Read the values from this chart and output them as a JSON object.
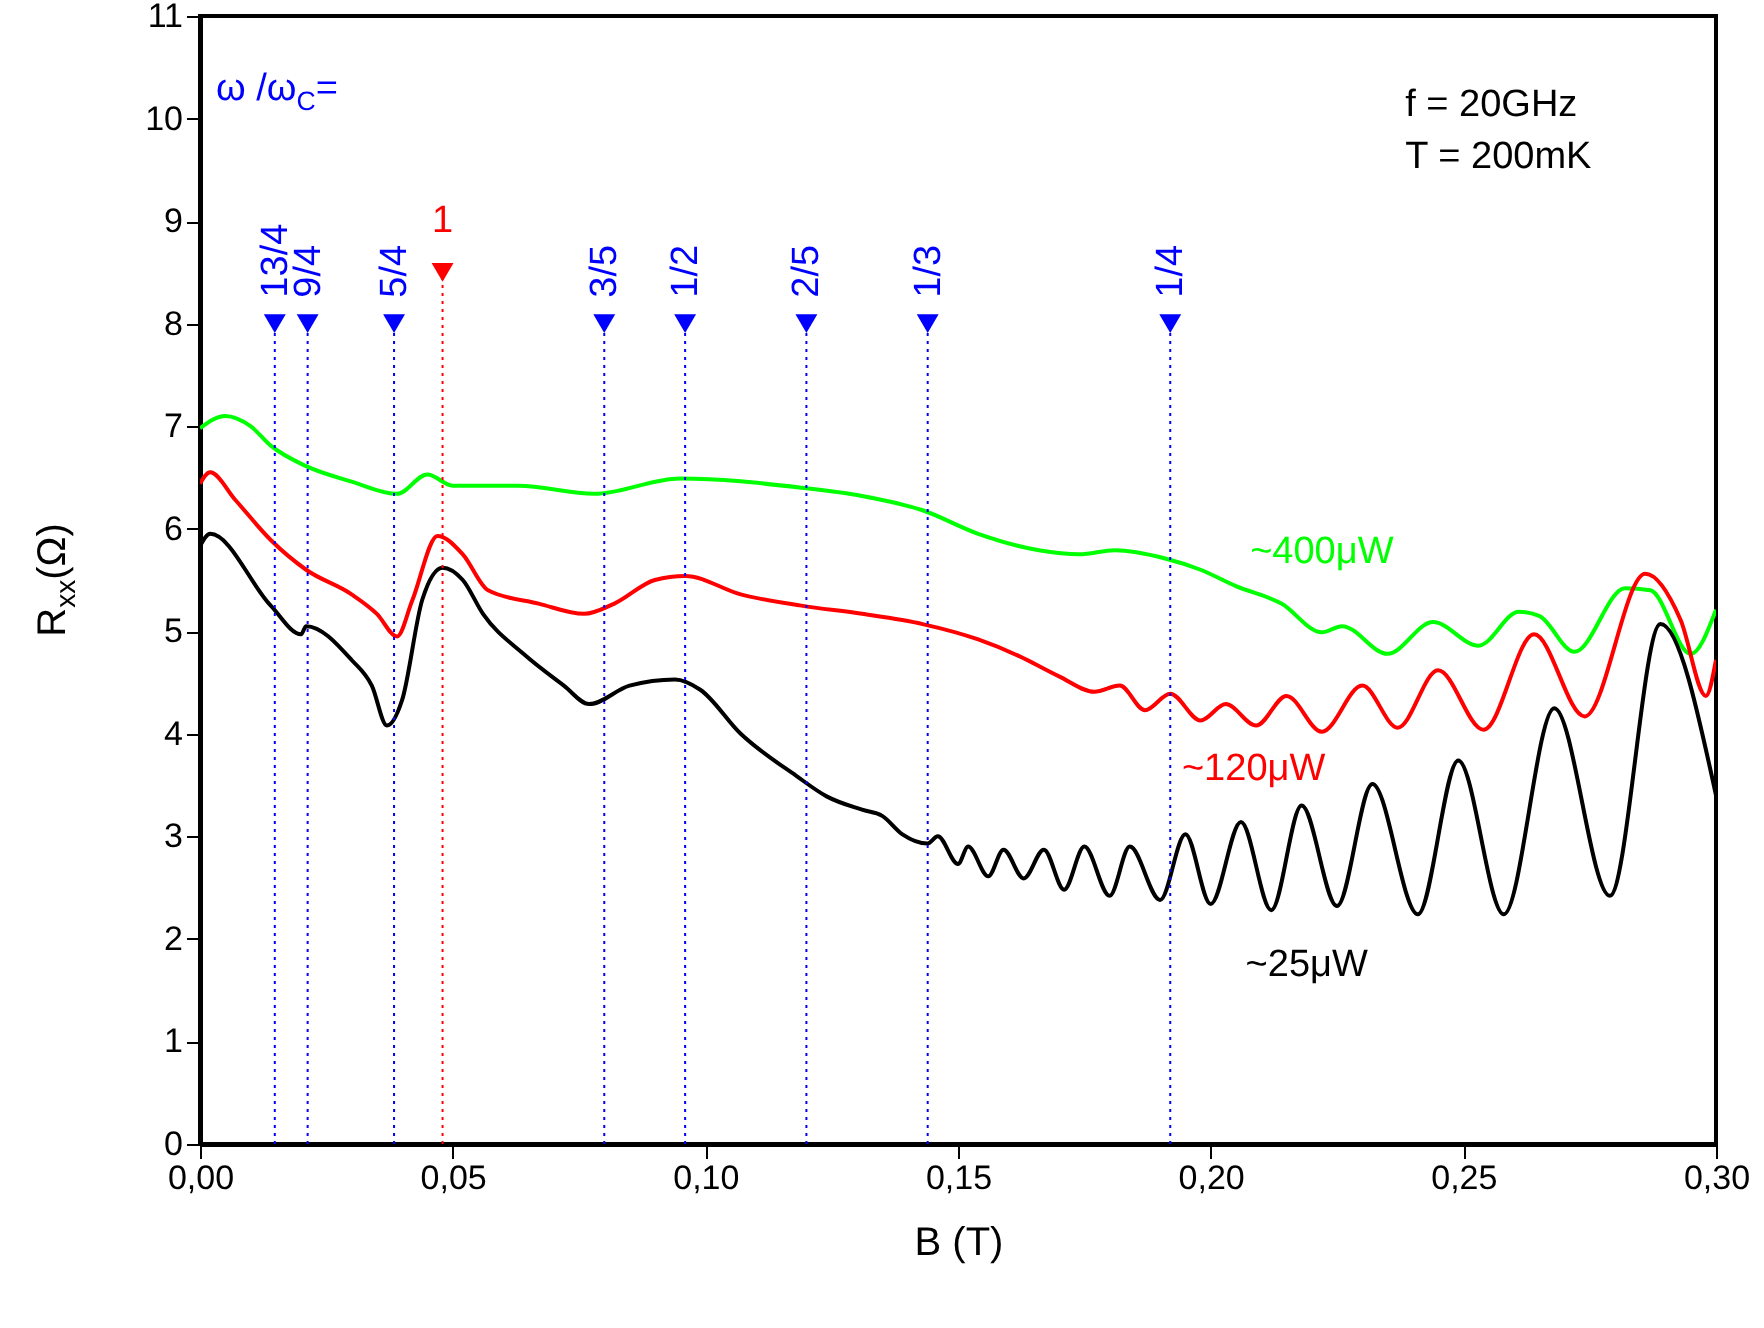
{
  "chart_data": {
    "type": "line",
    "xlabel": "B (T)",
    "ylabel": "R$_{xx}$(Ω)",
    "annotations": [
      "ω /ω$_{C}$=",
      "f = 20GHz",
      "T = 200mK",
      {
        "text": "13/4",
        "x": 0.0148,
        "y": 8
      },
      {
        "text": "9/4",
        "x": 0.0213,
        "y": 8
      },
      {
        "text": "5/4",
        "x": 0.0384,
        "y": 8
      },
      {
        "text": "1",
        "x": 0.048,
        "y": 8.5
      },
      {
        "text": "3/5",
        "x": 0.08,
        "y": 8
      },
      {
        "text": "1/2",
        "x": 0.096,
        "y": 8
      },
      {
        "text": "2/5",
        "x": 0.12,
        "y": 8
      },
      {
        "text": "1/3",
        "x": 0.144,
        "y": 8
      },
      {
        "text": "1/4",
        "x": 0.192,
        "y": 8
      }
    ],
    "xlim": [
      0,
      0.3
    ],
    "ylim": [
      0,
      11
    ],
    "xticks": [
      {
        "value": 0,
        "label": "0,00"
      },
      {
        "value": 0.05,
        "label": "0,05"
      },
      {
        "value": 0.1,
        "label": "0,10"
      },
      {
        "value": 0.15,
        "label": "0,15"
      },
      {
        "value": 0.2,
        "label": "0,20"
      },
      {
        "value": 0.25,
        "label": "0,25"
      },
      {
        "value": 0.3,
        "label": "0,30"
      }
    ],
    "yticks": [
      0,
      1,
      2,
      3,
      4,
      5,
      6,
      7,
      8,
      9,
      10,
      11
    ],
    "ref_lines": [
      {
        "axis": "x",
        "value": 0.0148,
        "color": "#0000ff",
        "line_style": "dotted"
      },
      {
        "axis": "x",
        "value": 0.0213,
        "color": "#0000ff",
        "line_style": "dotted"
      },
      {
        "axis": "x",
        "value": 0.0384,
        "color": "#0000ff",
        "line_style": "dotted"
      },
      {
        "axis": "x",
        "value": 0.048,
        "color": "#ff0000",
        "line_style": "dotted"
      },
      {
        "axis": "x",
        "value": 0.08,
        "color": "#0000ff",
        "line_style": "dotted"
      },
      {
        "axis": "x",
        "value": 0.096,
        "color": "#0000ff",
        "line_style": "dotted"
      },
      {
        "axis": "x",
        "value": 0.12,
        "color": "#0000ff",
        "line_style": "dotted"
      },
      {
        "axis": "x",
        "value": 0.144,
        "color": "#0000ff",
        "line_style": "dotted"
      },
      {
        "axis": "x",
        "value": 0.192,
        "color": "#0000ff",
        "line_style": "dotted"
      }
    ],
    "series": [
      {
        "name": "~400μW",
        "color": "#00ff00",
        "x": [
          0,
          0.005,
          0.01,
          0.014,
          0.021,
          0.03,
          0.039,
          0.045,
          0.05,
          0.063,
          0.078,
          0.095,
          0.119,
          0.131,
          0.143,
          0.154,
          0.166,
          0.174,
          0.181,
          0.191,
          0.198,
          0.205,
          0.214,
          0.222,
          0.226,
          0.235,
          0.244,
          0.253,
          0.261,
          0.265,
          0.272,
          0.282,
          0.287,
          0.295,
          0.3
        ],
        "values": [
          6.98,
          7.1,
          7.0,
          6.81,
          6.61,
          6.46,
          6.34,
          6.53,
          6.42,
          6.42,
          6.34,
          6.49,
          6.4,
          6.32,
          6.18,
          5.95,
          5.79,
          5.75,
          5.79,
          5.71,
          5.6,
          5.44,
          5.27,
          4.99,
          5.05,
          4.78,
          5.09,
          4.86,
          5.19,
          5.15,
          4.8,
          5.42,
          5.4,
          4.78,
          5.21
        ]
      },
      {
        "name": "~120μW",
        "color": "#ff0000",
        "x": [
          0,
          0.002,
          0.007,
          0.014,
          0.021,
          0.03,
          0.035,
          0.039,
          0.042,
          0.047,
          0.052,
          0.057,
          0.067,
          0.076,
          0.082,
          0.09,
          0.096,
          0.107,
          0.119,
          0.131,
          0.143,
          0.154,
          0.162,
          0.17,
          0.177,
          0.182,
          0.187,
          0.192,
          0.198,
          0.203,
          0.209,
          0.215,
          0.222,
          0.23,
          0.237,
          0.245,
          0.254,
          0.264,
          0.274,
          0.286,
          0.293,
          0.298,
          0.3
        ],
        "values": [
          6.44,
          6.55,
          6.28,
          5.89,
          5.6,
          5.36,
          5.17,
          4.95,
          5.3,
          5.93,
          5.75,
          5.4,
          5.27,
          5.17,
          5.27,
          5.5,
          5.54,
          5.36,
          5.25,
          5.17,
          5.07,
          4.92,
          4.76,
          4.56,
          4.41,
          4.47,
          4.23,
          4.39,
          4.13,
          4.29,
          4.08,
          4.37,
          4.02,
          4.47,
          4.06,
          4.62,
          4.04,
          4.97,
          4.17,
          5.56,
          5.11,
          4.37,
          4.72
        ]
      },
      {
        "name": "~25μW",
        "color": "#000000",
        "x": [
          0,
          0.002,
          0.014,
          0.02,
          0.021,
          0.03,
          0.034,
          0.037,
          0.04,
          0.044,
          0.048,
          0.052,
          0.056,
          0.064,
          0.072,
          0.077,
          0.085,
          0.094,
          0.099,
          0.107,
          0.118,
          0.124,
          0.131,
          0.135,
          0.139,
          0.144,
          0.146,
          0.15,
          0.152,
          0.156,
          0.159,
          0.163,
          0.167,
          0.171,
          0.175,
          0.18,
          0.184,
          0.19,
          0.195,
          0.2,
          0.206,
          0.212,
          0.218,
          0.225,
          0.232,
          0.241,
          0.249,
          0.258,
          0.268,
          0.279,
          0.289,
          0.3
        ],
        "values": [
          5.83,
          5.95,
          5.25,
          4.97,
          5.05,
          4.72,
          4.47,
          4.08,
          4.33,
          5.31,
          5.62,
          5.5,
          5.17,
          4.78,
          4.47,
          4.29,
          4.47,
          4.53,
          4.43,
          4.0,
          3.59,
          3.39,
          3.26,
          3.2,
          3.02,
          2.93,
          3.0,
          2.73,
          2.9,
          2.61,
          2.87,
          2.59,
          2.87,
          2.48,
          2.9,
          2.42,
          2.9,
          2.38,
          3.02,
          2.34,
          3.14,
          2.28,
          3.3,
          2.32,
          3.51,
          2.24,
          3.74,
          2.24,
          4.25,
          2.42,
          5.07,
          3.4
        ]
      },
      {
        "type": "scatter",
        "marker": "triangle",
        "x": [
          0.0148,
          0.0213,
          0.0384,
          0.048,
          0.08,
          0.096,
          0.12,
          0.144,
          0.192
        ],
        "values": [
          8,
          8,
          8,
          8.5,
          8,
          8,
          8,
          8,
          8
        ],
        "colors": [
          "#0000ff",
          "#0000ff",
          "#0000ff",
          "#ff0000",
          "#0000ff",
          "#0000ff",
          "#0000ff",
          "#0000ff",
          "#0000ff"
        ]
      }
    ]
  }
}
